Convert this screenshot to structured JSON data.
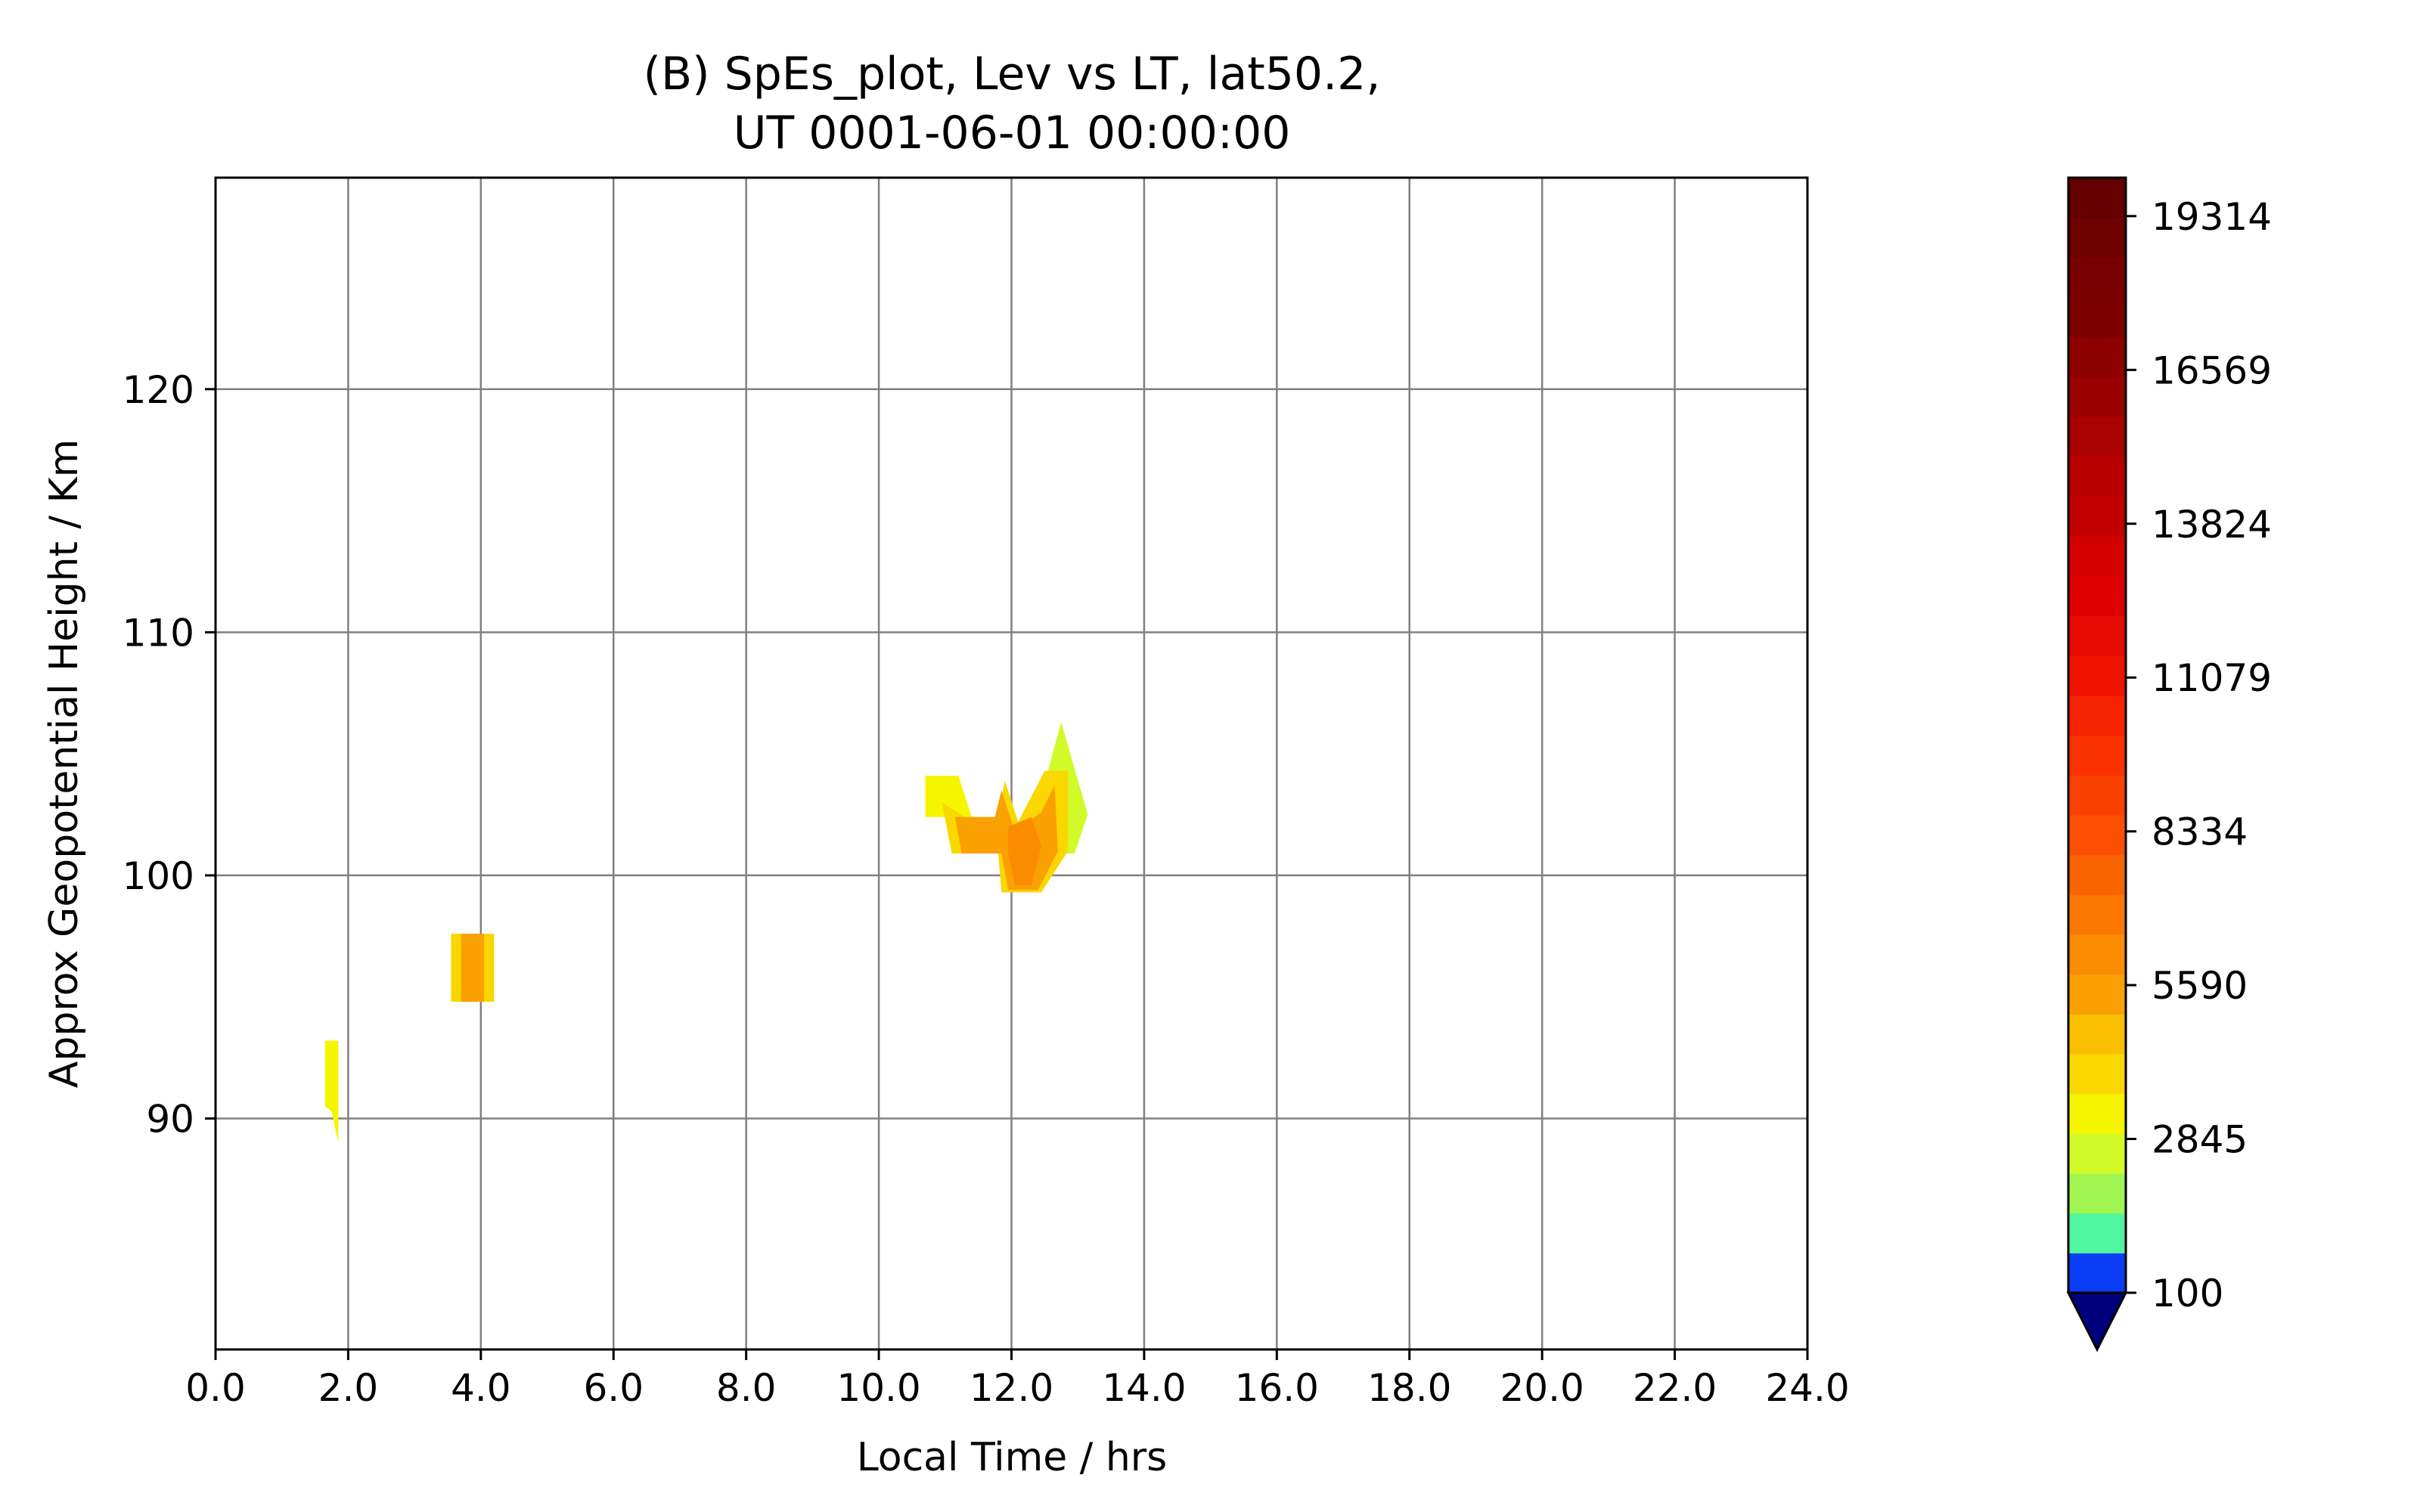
{
  "chart_data": {
    "type": "contour",
    "title_lines": [
      "(B) SpEs_plot, Lev vs LT, lat50.2,",
      "UT 0001-06-01 00:00:00"
    ],
    "xlabel": "Local Time / hrs",
    "ylabel": "Approx Geopotential Height / Km",
    "xlim": [
      0,
      24
    ],
    "ylim": [
      80.5,
      128.7
    ],
    "xticks": [
      0,
      2,
      4,
      6,
      8,
      10,
      12,
      14,
      16,
      18,
      20,
      22,
      24
    ],
    "xtick_labels": [
      "0.0",
      "2.0",
      "4.0",
      "6.0",
      "8.0",
      "10.0",
      "12.0",
      "14.0",
      "16.0",
      "18.0",
      "20.0",
      "22.0",
      "24.0"
    ],
    "yticks": [
      90,
      100,
      110,
      120
    ],
    "ytick_labels": [
      "90",
      "100",
      "110",
      "120"
    ],
    "grid": true,
    "colorbar": {
      "min": 100,
      "max": 20000,
      "extend": "min",
      "tick_values": [
        100,
        2845,
        5590,
        8334,
        11079,
        13824,
        16569,
        19314
      ],
      "tick_labels": [
        "100",
        "2845",
        "5590",
        "8334",
        "11079",
        "13824",
        "16569",
        "19314"
      ],
      "colors": [
        "#0a3cf5",
        "#50f5a0",
        "#a0f550",
        "#d2fa28",
        "#f5f500",
        "#fad700",
        "#fabe00",
        "#faa000",
        "#fa8c00",
        "#fa7800",
        "#fa6400",
        "#fa5000",
        "#fa4100",
        "#fa3200",
        "#f52300",
        "#f01400",
        "#e60a00",
        "#dc0000",
        "#d20000",
        "#c30000",
        "#b90000",
        "#aa0000",
        "#9b0000",
        "#8c0000",
        "#7d0000",
        "#780000",
        "#6e0000",
        "#640000"
      ],
      "under_color": "#00007d"
    },
    "regions": [
      {
        "color": "#f5f500",
        "points": [
          [
            1.65,
            93.2
          ],
          [
            1.85,
            93.2
          ],
          [
            1.85,
            89.0
          ],
          [
            1.75,
            90.3
          ],
          [
            1.65,
            90.5
          ]
        ]
      },
      {
        "color": "#fad700",
        "points": [
          [
            3.55,
            97.6
          ],
          [
            4.2,
            97.6
          ],
          [
            4.2,
            94.8
          ],
          [
            3.55,
            94.8
          ]
        ]
      },
      {
        "color": "#faa000",
        "points": [
          [
            3.7,
            97.6
          ],
          [
            4.05,
            97.6
          ],
          [
            4.05,
            94.8
          ],
          [
            3.7,
            94.8
          ]
        ]
      },
      {
        "color": "#f5f500",
        "points": [
          [
            10.7,
            104.1
          ],
          [
            11.2,
            104.1
          ],
          [
            11.4,
            102.4
          ],
          [
            10.7,
            102.4
          ]
        ]
      },
      {
        "color": "#d2fa28",
        "points": [
          [
            12.75,
            106.3
          ],
          [
            13.15,
            102.5
          ],
          [
            12.95,
            100.9
          ],
          [
            12.65,
            100.9
          ],
          [
            12.55,
            104.3
          ]
        ]
      },
      {
        "color": "#fad700",
        "points": [
          [
            10.95,
            103.0
          ],
          [
            11.3,
            102.4
          ],
          [
            11.8,
            102.4
          ],
          [
            11.9,
            103.9
          ],
          [
            12.1,
            102.2
          ],
          [
            12.5,
            104.3
          ],
          [
            12.85,
            104.3
          ],
          [
            12.85,
            101.0
          ],
          [
            12.45,
            99.3
          ],
          [
            11.85,
            99.3
          ],
          [
            11.8,
            100.9
          ],
          [
            11.1,
            100.9
          ]
        ]
      },
      {
        "color": "#faa000",
        "points": [
          [
            11.15,
            102.4
          ],
          [
            11.75,
            102.4
          ],
          [
            11.85,
            103.5
          ],
          [
            12.05,
            101.8
          ],
          [
            12.45,
            102.6
          ],
          [
            12.65,
            103.7
          ],
          [
            12.7,
            101.0
          ],
          [
            12.4,
            99.4
          ],
          [
            11.95,
            99.4
          ],
          [
            11.85,
            100.9
          ],
          [
            11.25,
            100.9
          ]
        ]
      },
      {
        "color": "#fa8c00",
        "points": [
          [
            11.95,
            102.0
          ],
          [
            12.3,
            102.4
          ],
          [
            12.45,
            101.2
          ],
          [
            12.3,
            99.6
          ],
          [
            12.05,
            99.6
          ],
          [
            11.95,
            100.9
          ]
        ]
      }
    ]
  }
}
